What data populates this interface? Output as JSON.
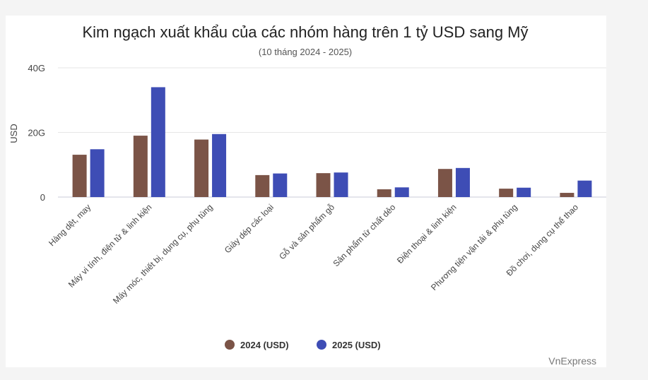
{
  "chart_data": {
    "type": "bar",
    "title": "Kim ngạch xuất khẩu của các nhóm hàng trên 1 tỷ USD sang Mỹ",
    "subtitle": "(10 tháng 2024 - 2025)",
    "ylabel": "USD",
    "xlabel": "",
    "ylim": [
      0,
      40000000000
    ],
    "yticks": [
      {
        "value": 0,
        "label": "0"
      },
      {
        "value": 20000000000,
        "label": "20G"
      },
      {
        "value": 40000000000,
        "label": "40G"
      }
    ],
    "grid": true,
    "legend_position": "bottom",
    "categories": [
      "Hàng dệt, may",
      "Máy vi tính, điện tử & linh kiện",
      "Máy móc, thiết bị, dụng cụ, phụ tùng",
      "Giày dép các loại",
      "Gỗ và sản phẩm gỗ",
      "Sản phẩm từ chất dẻo",
      "Điện thoại & linh kiện",
      "Phương tiện vận tải & phụ tùng",
      "Đồ chơi, dụng cụ thể thao"
    ],
    "series": [
      {
        "name": "2024 (USD)",
        "color": "#7b5447",
        "values": [
          13100000000,
          19000000000,
          17800000000,
          6800000000,
          7400000000,
          2400000000,
          8700000000,
          2600000000,
          1300000000
        ]
      },
      {
        "name": "2025 (USD)",
        "color": "#3e4db5",
        "values": [
          14800000000,
          34000000000,
          19500000000,
          7300000000,
          7600000000,
          3000000000,
          9000000000,
          2900000000,
          5100000000
        ]
      }
    ]
  },
  "credit": "VnExpress"
}
